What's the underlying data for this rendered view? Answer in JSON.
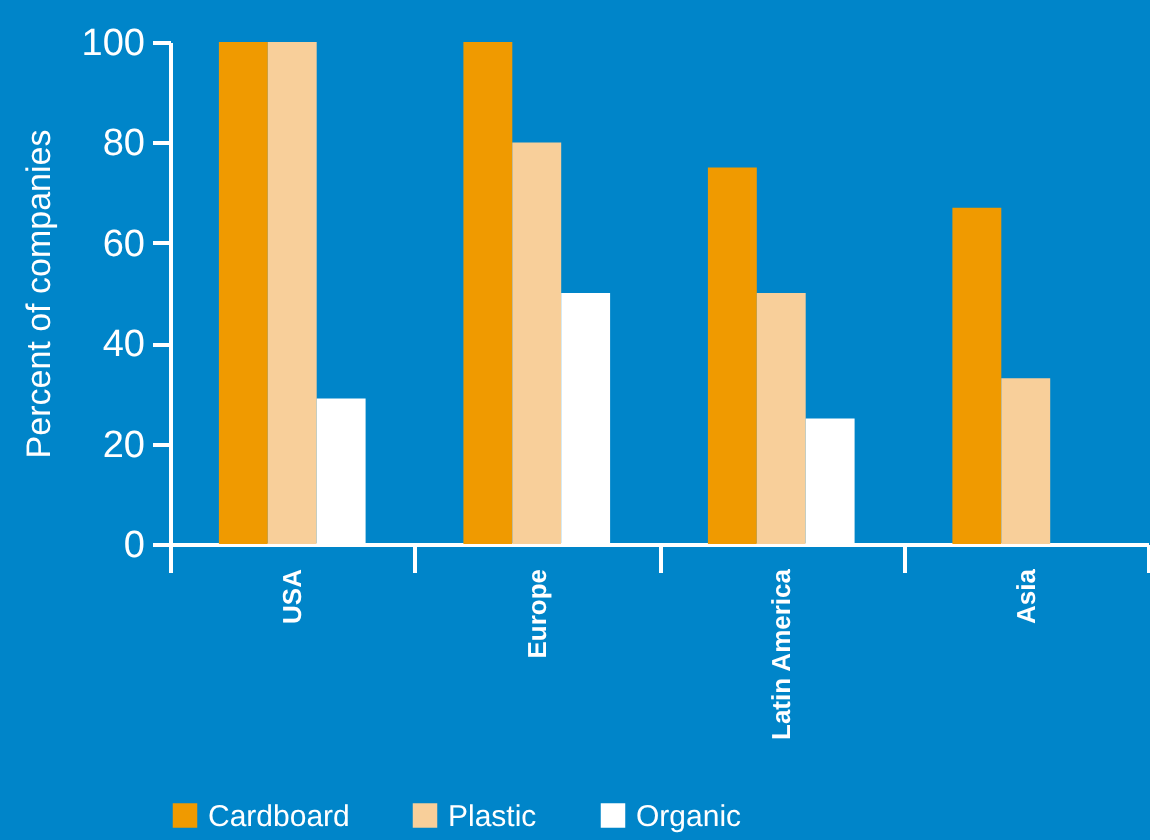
{
  "chart_data": {
    "type": "bar",
    "ylabel": "Percent of companies",
    "categories": [
      "USA",
      "Europe",
      "Latin America",
      "Asia"
    ],
    "series": [
      {
        "name": "Cardboard",
        "color": "#f09a00",
        "values": [
          100,
          100,
          75,
          67
        ]
      },
      {
        "name": "Plastic",
        "color": "#f8cf9a",
        "values": [
          100,
          80,
          50,
          33
        ]
      },
      {
        "name": "Organic",
        "color": "#ffffff",
        "values": [
          29,
          50,
          25,
          0
        ]
      }
    ],
    "ylim": [
      0,
      100
    ],
    "yticks": [
      0,
      20,
      40,
      60,
      80,
      100
    ],
    "grid": false,
    "legend": "bottom"
  }
}
